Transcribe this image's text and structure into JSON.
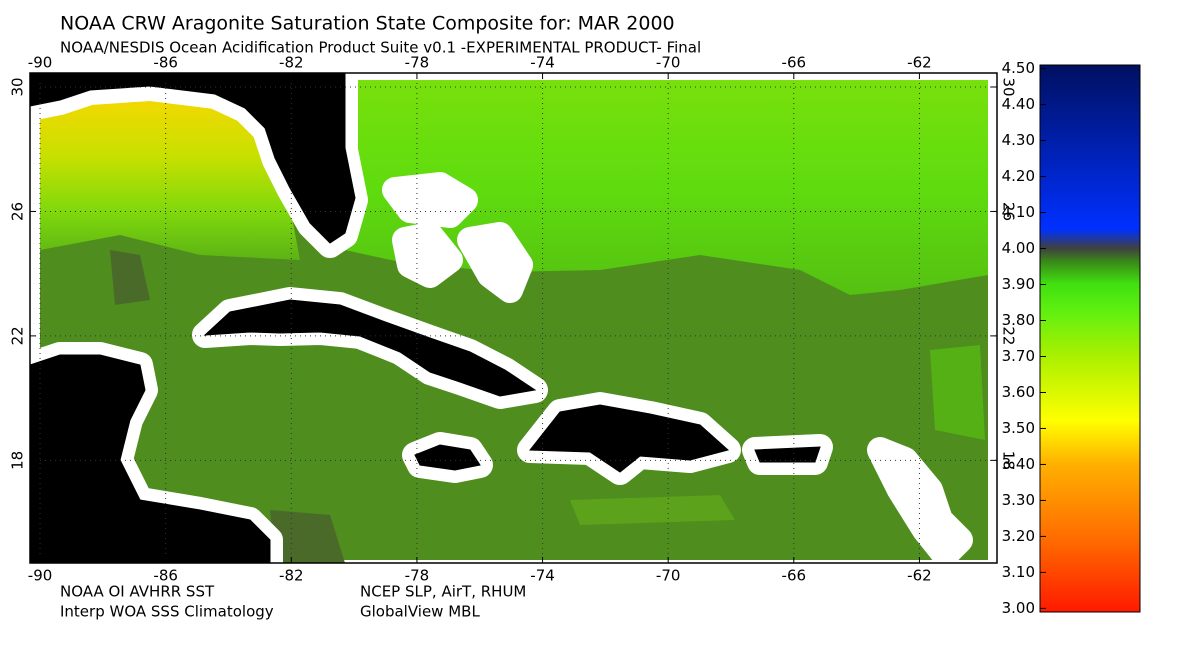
{
  "header": {
    "title": "NOAA CRW Aragonite Saturation State Composite for: MAR 2000",
    "subtitle": "NOAA/NESDIS Ocean Acidification Product Suite  v0.1 -EXPERIMENTAL PRODUCT-   Final"
  },
  "map": {
    "lonlim": [
      -90.32,
      -59.53
    ],
    "latlim": [
      14.7,
      30.45
    ],
    "lon_ticks": [
      -90,
      -86,
      -82,
      -78,
      -74,
      -70,
      -66,
      -62
    ],
    "lat_ticks": [
      18,
      22,
      26,
      30
    ]
  },
  "colorbar": {
    "lim": [
      2.99,
      4.51
    ],
    "ticks": [
      {
        "value": 3.0,
        "label": "3.00"
      },
      {
        "value": 3.1,
        "label": "3.10"
      },
      {
        "value": 3.2,
        "label": "3.20"
      },
      {
        "value": 3.3,
        "label": "3.30"
      },
      {
        "value": 3.4,
        "label": "3.40"
      },
      {
        "value": 3.5,
        "label": "3.50"
      },
      {
        "value": 3.6,
        "label": "3.60"
      },
      {
        "value": 3.7,
        "label": "3.70"
      },
      {
        "value": 3.8,
        "label": "3.80"
      },
      {
        "value": 3.9,
        "label": "3.90"
      },
      {
        "value": 4.0,
        "label": "4.00"
      },
      {
        "value": 4.1,
        "label": "4.10"
      },
      {
        "value": 4.2,
        "label": "4.20"
      },
      {
        "value": 4.3,
        "label": "4.30"
      },
      {
        "value": 4.4,
        "label": "4.40"
      },
      {
        "value": 4.5,
        "label": "4.50"
      }
    ]
  },
  "footer": {
    "left": [
      "NOAA OI AVHRR SST",
      "Interp WOA SSS Climatology"
    ],
    "right": [
      "NCEP SLP, AirT, RHUM",
      "GlobalView MBL"
    ]
  }
}
